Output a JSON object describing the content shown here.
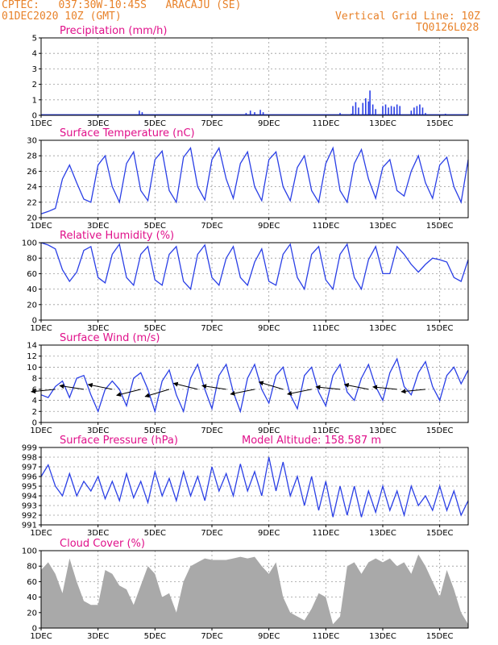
{
  "header": {
    "line1": "CPTEC:   037:30W-10:45S   ARACAJU (SE)",
    "line2": "01DEC2020 10Z (GMT)",
    "grid_note": "Vertical Grid Line: 10Z",
    "model_code": "TQ0126L028"
  },
  "colors": {
    "header": "#e8822a",
    "panel_title": "#e0108a",
    "series": "#2a3fe6",
    "cloud": "#a9a9a9",
    "wind_arrow": "#000000",
    "grid": "#9a9a9a"
  },
  "chart_data": [
    {
      "type": "bar",
      "id": "precip",
      "title": "Precipitation (mm/h)",
      "ylim": [
        0,
        5
      ],
      "yticks": [
        0,
        1,
        2,
        3,
        4,
        5
      ],
      "xlim": [
        0,
        15
      ],
      "xticks": [
        0,
        2,
        4,
        6,
        8,
        10,
        12,
        14
      ],
      "xtick_labels": [
        "1DEC",
        "3DEC",
        "5DEC",
        "7DEC",
        "9DEC",
        "11DEC",
        "13DEC",
        "15DEC"
      ],
      "grid": true,
      "bars": [
        [
          3.45,
          0.3
        ],
        [
          3.55,
          0.2
        ],
        [
          7.2,
          0.15
        ],
        [
          7.35,
          0.3
        ],
        [
          7.5,
          0.2
        ],
        [
          7.7,
          0.35
        ],
        [
          7.8,
          0.2
        ],
        [
          10.5,
          0.15
        ],
        [
          10.9,
          0.1
        ],
        [
          10.95,
          0.6
        ],
        [
          11.05,
          0.85
        ],
        [
          11.15,
          0.5
        ],
        [
          11.3,
          0.8
        ],
        [
          11.4,
          1.1
        ],
        [
          11.5,
          0.9
        ],
        [
          11.55,
          1.6
        ],
        [
          11.65,
          0.7
        ],
        [
          11.75,
          0.4
        ],
        [
          12.0,
          0.6
        ],
        [
          12.1,
          0.7
        ],
        [
          12.2,
          0.5
        ],
        [
          12.3,
          0.6
        ],
        [
          12.4,
          0.55
        ],
        [
          12.5,
          0.7
        ],
        [
          12.6,
          0.6
        ],
        [
          13.0,
          0.3
        ],
        [
          13.1,
          0.5
        ],
        [
          13.2,
          0.6
        ],
        [
          13.3,
          0.7
        ],
        [
          13.4,
          0.5
        ],
        [
          13.5,
          0.15
        ],
        [
          14.2,
          0.1
        ]
      ]
    },
    {
      "type": "line",
      "id": "temp",
      "title": "Surface Temperature (nC)",
      "ylim": [
        20,
        30
      ],
      "yticks": [
        20,
        22,
        24,
        26,
        28,
        30
      ],
      "xlim": [
        0,
        15
      ],
      "xticks": [
        0,
        2,
        4,
        6,
        8,
        10,
        12,
        14
      ],
      "xtick_labels": [
        "1DEC",
        "3DEC",
        "5DEC",
        "7DEC",
        "9DEC",
        "11DEC",
        "13DEC",
        "15DEC"
      ],
      "grid": true,
      "series": [
        {
          "x": [
            0,
            0.25,
            0.5,
            0.75,
            1.0,
            1.25,
            1.5,
            1.75,
            2.0,
            2.25,
            2.5,
            2.75,
            3.0,
            3.25,
            3.5,
            3.75,
            4.0,
            4.25,
            4.5,
            4.75,
            5.0,
            5.25,
            5.5,
            5.75,
            6.0,
            6.25,
            6.5,
            6.75,
            7.0,
            7.25,
            7.5,
            7.75,
            8.0,
            8.25,
            8.5,
            8.75,
            9.0,
            9.25,
            9.5,
            9.75,
            10.0,
            10.25,
            10.5,
            10.75,
            11.0,
            11.25,
            11.5,
            11.75,
            12.0,
            12.25,
            12.5,
            12.75,
            13.0,
            13.25,
            13.5,
            13.75,
            14.0,
            14.25,
            14.5,
            14.75,
            15.0
          ],
          "y": [
            20.5,
            20.8,
            21.2,
            25.0,
            26.8,
            24.5,
            22.4,
            22.0,
            26.8,
            28.0,
            24.0,
            22.0,
            27.0,
            28.5,
            23.5,
            22.2,
            27.5,
            28.6,
            23.5,
            22.0,
            27.8,
            29.0,
            24.0,
            22.3,
            27.5,
            29.0,
            25.0,
            22.5,
            27.0,
            28.5,
            24.0,
            22.2,
            27.5,
            28.5,
            24.0,
            22.2,
            26.5,
            28.0,
            23.5,
            22.0,
            27.0,
            29.0,
            23.5,
            22.0,
            27.0,
            28.8,
            25.0,
            22.5,
            26.5,
            27.5,
            23.5,
            22.8,
            26.0,
            28.0,
            24.5,
            22.5,
            26.8,
            27.8,
            24.0,
            22.0,
            27.5
          ]
        }
      ]
    },
    {
      "type": "line",
      "id": "rh",
      "title": "Relative Humidity (%)",
      "ylim": [
        0,
        100
      ],
      "yticks": [
        0,
        20,
        40,
        60,
        80,
        100
      ],
      "xlim": [
        0,
        15
      ],
      "xticks": [
        0,
        2,
        4,
        6,
        8,
        10,
        12,
        14
      ],
      "xtick_labels": [
        "1DEC",
        "3DEC",
        "5DEC",
        "7DEC",
        "9DEC",
        "11DEC",
        "13DEC",
        "15DEC"
      ],
      "grid": true,
      "series": [
        {
          "x": [
            0,
            0.25,
            0.5,
            0.75,
            1.0,
            1.25,
            1.5,
            1.75,
            2.0,
            2.25,
            2.5,
            2.75,
            3.0,
            3.25,
            3.5,
            3.75,
            4.0,
            4.25,
            4.5,
            4.75,
            5.0,
            5.25,
            5.5,
            5.75,
            6.0,
            6.25,
            6.5,
            6.75,
            7.0,
            7.25,
            7.5,
            7.75,
            8.0,
            8.25,
            8.5,
            8.75,
            9.0,
            9.25,
            9.5,
            9.75,
            10.0,
            10.25,
            10.5,
            10.75,
            11.0,
            11.25,
            11.5,
            11.75,
            12.0,
            12.25,
            12.5,
            12.75,
            13.0,
            13.25,
            13.5,
            13.75,
            14.0,
            14.25,
            14.5,
            14.75,
            15.0
          ],
          "y": [
            100,
            97,
            92,
            65,
            50,
            62,
            90,
            95,
            55,
            48,
            85,
            98,
            55,
            45,
            85,
            95,
            52,
            45,
            85,
            95,
            50,
            40,
            85,
            97,
            55,
            45,
            80,
            95,
            55,
            45,
            75,
            92,
            50,
            45,
            85,
            98,
            55,
            40,
            85,
            95,
            52,
            40,
            85,
            98,
            55,
            40,
            78,
            95,
            60,
            60,
            95,
            85,
            72,
            62,
            72,
            80,
            78,
            75,
            55,
            50,
            78
          ]
        }
      ]
    },
    {
      "type": "line",
      "id": "wind",
      "title": "Surface Wind (m/s)",
      "ylim": [
        0,
        14
      ],
      "yticks": [
        0,
        2,
        4,
        6,
        8,
        10,
        12,
        14
      ],
      "xlim": [
        0,
        15
      ],
      "xticks": [
        0,
        2,
        4,
        6,
        8,
        10,
        12,
        14
      ],
      "xtick_labels": [
        "1DEC",
        "3DEC",
        "5DEC",
        "7DEC",
        "9DEC",
        "11DEC",
        "13DEC",
        "15DEC"
      ],
      "grid": true,
      "series": [
        {
          "x": [
            0,
            0.25,
            0.5,
            0.75,
            1.0,
            1.25,
            1.5,
            1.75,
            2.0,
            2.25,
            2.5,
            2.75,
            3.0,
            3.25,
            3.5,
            3.75,
            4.0,
            4.25,
            4.5,
            4.75,
            5.0,
            5.25,
            5.5,
            5.75,
            6.0,
            6.25,
            6.5,
            6.75,
            7.0,
            7.25,
            7.5,
            7.75,
            8.0,
            8.25,
            8.5,
            8.75,
            9.0,
            9.25,
            9.5,
            9.75,
            10.0,
            10.25,
            10.5,
            10.75,
            11.0,
            11.25,
            11.5,
            11.75,
            12.0,
            12.25,
            12.5,
            12.75,
            13.0,
            13.25,
            13.5,
            13.75,
            14.0,
            14.25,
            14.5,
            14.75,
            15.0
          ],
          "y": [
            5.0,
            4.5,
            6.5,
            7.5,
            4.5,
            8.0,
            8.5,
            5.0,
            2.0,
            6.0,
            7.5,
            6.0,
            3.0,
            8.0,
            9.0,
            6.0,
            2.0,
            7.5,
            9.5,
            5.0,
            2.0,
            8.0,
            10.5,
            6.0,
            2.5,
            8.5,
            10.5,
            5.5,
            2.0,
            8.0,
            10.5,
            6.0,
            3.5,
            8.5,
            10.0,
            5.0,
            2.5,
            8.5,
            10.0,
            5.5,
            3.0,
            8.5,
            10.5,
            5.5,
            4.0,
            8.0,
            10.5,
            6.5,
            4.0,
            9.0,
            11.5,
            6.5,
            5.0,
            9.0,
            11.0,
            6.5,
            4.0,
            8.5,
            10.0,
            7.0,
            9.5
          ]
        }
      ],
      "vectors": [
        {
          "x": 0.5,
          "u": -1.0,
          "v": -0.1
        },
        {
          "x": 1.5,
          "u": -1.0,
          "v": 0.15
        },
        {
          "x": 2.5,
          "u": -1.0,
          "v": 0.2
        },
        {
          "x": 3.5,
          "u": -1.0,
          "v": -0.25
        },
        {
          "x": 4.5,
          "u": -1.0,
          "v": -0.3
        },
        {
          "x": 5.5,
          "u": -1.0,
          "v": 0.25
        },
        {
          "x": 6.5,
          "u": -1.0,
          "v": 0.15
        },
        {
          "x": 7.5,
          "u": -1.0,
          "v": -0.2
        },
        {
          "x": 8.5,
          "u": -1.0,
          "v": 0.3
        },
        {
          "x": 9.5,
          "u": -1.0,
          "v": -0.2
        },
        {
          "x": 10.5,
          "u": -1.0,
          "v": 0.1
        },
        {
          "x": 11.5,
          "u": -1.0,
          "v": 0.2
        },
        {
          "x": 12.5,
          "u": -1.0,
          "v": 0.1
        },
        {
          "x": 13.5,
          "u": -1.0,
          "v": -0.1
        }
      ]
    },
    {
      "type": "line",
      "id": "press",
      "title": "Surface Pressure (hPa)",
      "annotation": "Model Altitude: 158.587 m",
      "ylim": [
        991,
        999
      ],
      "yticks": [
        991,
        992,
        993,
        994,
        995,
        996,
        997,
        998,
        999
      ],
      "xlim": [
        0,
        15
      ],
      "xticks": [
        0,
        2,
        4,
        6,
        8,
        10,
        12,
        14
      ],
      "xtick_labels": [
        "1DEC",
        "3DEC",
        "5DEC",
        "7DEC",
        "9DEC",
        "11DEC",
        "13DEC",
        "15DEC"
      ],
      "grid": true,
      "series": [
        {
          "x": [
            0,
            0.25,
            0.5,
            0.75,
            1.0,
            1.25,
            1.5,
            1.75,
            2.0,
            2.25,
            2.5,
            2.75,
            3.0,
            3.25,
            3.5,
            3.75,
            4.0,
            4.25,
            4.5,
            4.75,
            5.0,
            5.25,
            5.5,
            5.75,
            6.0,
            6.25,
            6.5,
            6.75,
            7.0,
            7.25,
            7.5,
            7.75,
            8.0,
            8.25,
            8.5,
            8.75,
            9.0,
            9.25,
            9.5,
            9.75,
            10.0,
            10.25,
            10.5,
            10.75,
            11.0,
            11.25,
            11.5,
            11.75,
            12.0,
            12.25,
            12.5,
            12.75,
            13.0,
            13.25,
            13.5,
            13.75,
            14.0,
            14.25,
            14.5,
            14.75,
            15.0
          ],
          "y": [
            996,
            997.2,
            995,
            994,
            996.3,
            994,
            995.5,
            994.5,
            996,
            993.7,
            995.5,
            993.5,
            996.3,
            993.8,
            995.5,
            993.3,
            996.5,
            994,
            995.8,
            993.5,
            996.5,
            994,
            996,
            993.5,
            997,
            994.5,
            996.3,
            994,
            997.3,
            994.5,
            996.5,
            994,
            998,
            994.5,
            997.5,
            994,
            996,
            993,
            996,
            992.5,
            995.5,
            991.8,
            995,
            992,
            995,
            991.8,
            994.5,
            992.3,
            995,
            992.5,
            994.5,
            992,
            995,
            993,
            994,
            992.5,
            995,
            992.5,
            994.5,
            992,
            993.5
          ]
        }
      ]
    },
    {
      "type": "bar",
      "id": "cloud",
      "title": "Cloud Cover (%)",
      "ylim": [
        0,
        100
      ],
      "yticks": [
        0,
        20,
        40,
        60,
        80,
        100
      ],
      "xlim": [
        0,
        15
      ],
      "xticks": [
        0,
        2,
        4,
        6,
        8,
        10,
        12,
        14
      ],
      "xtick_labels": [
        "1DEC",
        "3DEC",
        "5DEC",
        "7DEC",
        "9DEC",
        "11DEC",
        "13DEC",
        "15DEC"
      ],
      "grid": true,
      "series": [
        {
          "x": [
            0,
            0.25,
            0.5,
            0.75,
            1.0,
            1.25,
            1.5,
            1.75,
            2.0,
            2.25,
            2.5,
            2.75,
            3.0,
            3.25,
            3.5,
            3.75,
            4.0,
            4.25,
            4.5,
            4.75,
            5.0,
            5.25,
            5.5,
            5.75,
            6.0,
            6.25,
            6.5,
            6.75,
            7.0,
            7.25,
            7.5,
            7.75,
            8.0,
            8.25,
            8.5,
            8.75,
            9.0,
            9.25,
            9.5,
            9.75,
            10.0,
            10.25,
            10.5,
            10.75,
            11.0,
            11.25,
            11.5,
            11.75,
            12.0,
            12.25,
            12.5,
            12.75,
            13.0,
            13.25,
            13.5,
            13.75,
            14.0,
            14.25,
            14.5,
            14.75,
            15.0
          ],
          "y": [
            75,
            85,
            70,
            45,
            90,
            60,
            35,
            30,
            30,
            75,
            70,
            55,
            50,
            30,
            55,
            80,
            70,
            40,
            45,
            20,
            60,
            80,
            85,
            90,
            88,
            88,
            88,
            90,
            92,
            90,
            92,
            80,
            70,
            85,
            40,
            20,
            15,
            10,
            25,
            45,
            40,
            5,
            15,
            80,
            85,
            70,
            85,
            90,
            85,
            90,
            80,
            85,
            70,
            95,
            80,
            60,
            40,
            75,
            50,
            20,
            5
          ]
        }
      ]
    }
  ]
}
